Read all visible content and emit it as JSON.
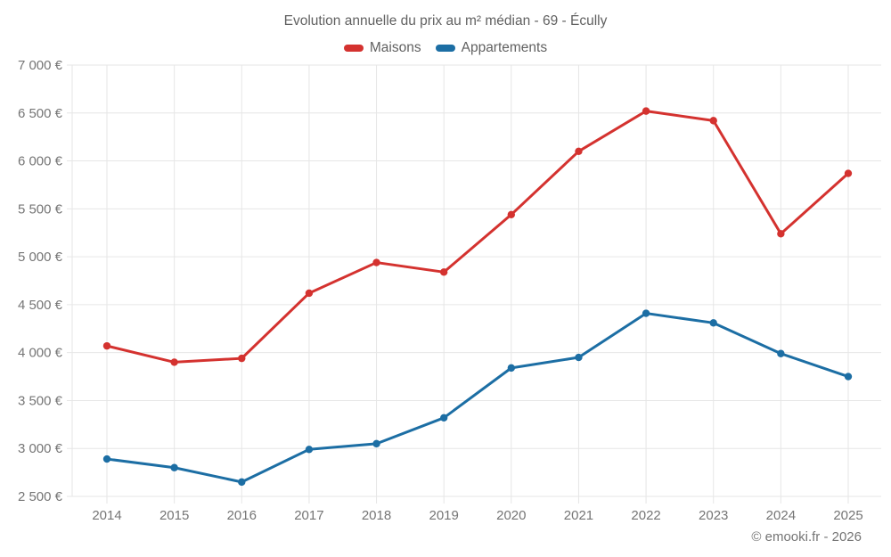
{
  "title": "Evolution annuelle du prix au m² médian - 69 - Écully",
  "footer": "© emooki.fr - 2026",
  "legend": [
    {
      "label": "Maisons",
      "color": "#d4322f"
    },
    {
      "label": "Appartements",
      "color": "#1c6ea4"
    }
  ],
  "colors": {
    "maisons": "#d4322f",
    "appartements": "#1c6ea4",
    "grid": "#e6e6e6",
    "axis_text": "#757575",
    "title_text": "#616161"
  },
  "chart_data": {
    "type": "line",
    "title": "Evolution annuelle du prix au m² médian - 69 - Écully",
    "categories": [
      "2014",
      "2015",
      "2016",
      "2017",
      "2018",
      "2019",
      "2020",
      "2021",
      "2022",
      "2023",
      "2024",
      "2025"
    ],
    "series": [
      {
        "name": "Maisons",
        "color": "#d4322f",
        "values": [
          4070,
          3900,
          3940,
          4620,
          4940,
          4840,
          5440,
          6100,
          6520,
          6420,
          5240,
          5870
        ]
      },
      {
        "name": "Appartements",
        "color": "#1c6ea4",
        "values": [
          2890,
          2800,
          2650,
          2990,
          3050,
          3320,
          3840,
          3950,
          4410,
          4310,
          3990,
          3750
        ]
      }
    ],
    "xlabel": "",
    "ylabel": "",
    "ylim": [
      2500,
      7000
    ],
    "y_step": 500,
    "y_tick_labels": [
      "7 000 €",
      "6 500 €",
      "6 000 €",
      "5 500 €",
      "5 000 €",
      "4 500 €",
      "4 000 €",
      "3 500 €",
      "3 000 €",
      "2 500 €"
    ],
    "grid": true,
    "legend_position": "top",
    "point_style": "circle"
  }
}
